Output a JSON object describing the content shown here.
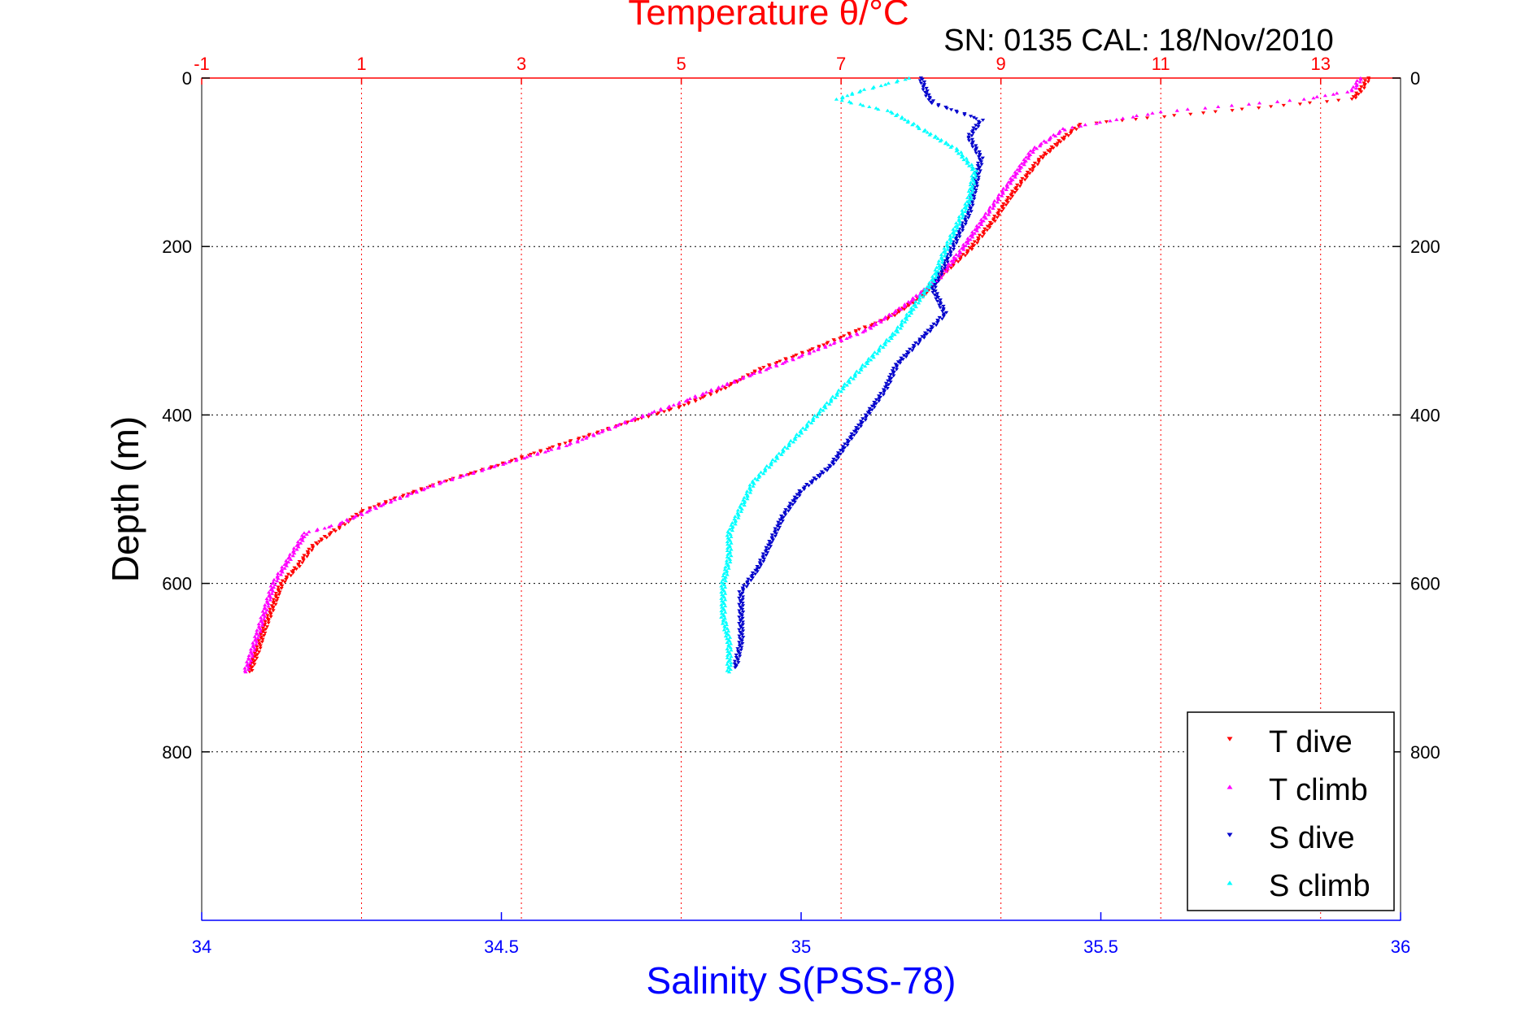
{
  "chart_data": {
    "type": "scatter",
    "title": "Temperature θ/°C",
    "subtitle": "SN: 0135  CAL: 18/Nov/2010",
    "xlabel_bottom": "Salinity S(PSS-78)",
    "xlabel_top": "Temperature θ/°C",
    "ylabel": "Depth (m)",
    "salinity_range": [
      34,
      36
    ],
    "temperature_range": [
      -1,
      14
    ],
    "depth_range": [
      0,
      1000
    ],
    "depth_inverted": true,
    "salinity_ticks": [
      "34",
      "34.5",
      "35",
      "35.5",
      "36"
    ],
    "temperature_ticks": [
      "-1",
      "1",
      "3",
      "5",
      "7",
      "9",
      "11",
      "13"
    ],
    "depth_ticks_left": [
      "0",
      "200",
      "400",
      "600",
      "800"
    ],
    "depth_ticks_right": [
      "0",
      "200",
      "400",
      "600",
      "800"
    ],
    "grid": true,
    "legend_position": "bottom-right",
    "colors": {
      "temperature_axis": "#ff0000",
      "salinity_axis": "#0000ff",
      "t_dive": "#ff0000",
      "t_climb": "#ff00ff",
      "s_dive": "#0000cc",
      "s_climb": "#00ffff"
    },
    "series": [
      {
        "name": "T dive",
        "axis": "temperature",
        "marker": "triangle-down",
        "points": [
          [
            13.6,
            0
          ],
          [
            13.5,
            15
          ],
          [
            13.4,
            25
          ],
          [
            10,
            55
          ],
          [
            9.8,
            70
          ],
          [
            9.5,
            95
          ],
          [
            9.2,
            130
          ],
          [
            8.9,
            170
          ],
          [
            8.6,
            205
          ],
          [
            8.3,
            230
          ],
          [
            8.0,
            260
          ],
          [
            7.6,
            285
          ],
          [
            7.2,
            300
          ],
          [
            6.7,
            320
          ],
          [
            6.0,
            345
          ],
          [
            5.5,
            370
          ],
          [
            5.0,
            390
          ],
          [
            4.3,
            410
          ],
          [
            3.5,
            435
          ],
          [
            2.7,
            460
          ],
          [
            2.0,
            480
          ],
          [
            1.4,
            500
          ],
          [
            1.0,
            515
          ],
          [
            0.7,
            535
          ],
          [
            0.4,
            555
          ],
          [
            0.2,
            580
          ],
          [
            0.0,
            600
          ],
          [
            -0.1,
            625
          ],
          [
            -0.2,
            650
          ],
          [
            -0.3,
            680
          ],
          [
            -0.4,
            705
          ]
        ]
      },
      {
        "name": "T climb",
        "axis": "temperature",
        "marker": "triangle-up",
        "points": [
          [
            13.5,
            0
          ],
          [
            13.4,
            15
          ],
          [
            12.8,
            25
          ],
          [
            11.0,
            40
          ],
          [
            9.8,
            60
          ],
          [
            9.4,
            85
          ],
          [
            9.1,
            125
          ],
          [
            8.8,
            165
          ],
          [
            8.5,
            205
          ],
          [
            8.2,
            240
          ],
          [
            7.8,
            270
          ],
          [
            7.3,
            300
          ],
          [
            6.5,
            330
          ],
          [
            5.8,
            355
          ],
          [
            5.0,
            385
          ],
          [
            4.4,
            405
          ],
          [
            3.6,
            435
          ],
          [
            2.7,
            460
          ],
          [
            2.0,
            480
          ],
          [
            1.3,
            505
          ],
          [
            0.7,
            530
          ],
          [
            0.3,
            540
          ],
          [
            0.1,
            570
          ],
          [
            -0.1,
            600
          ],
          [
            -0.2,
            630
          ],
          [
            -0.3,
            660
          ],
          [
            -0.4,
            690
          ],
          [
            -0.45,
            705
          ]
        ]
      },
      {
        "name": "S dive",
        "axis": "salinity",
        "marker": "triangle-down",
        "points": [
          [
            35.2,
            0
          ],
          [
            35.21,
            20
          ],
          [
            35.22,
            30
          ],
          [
            35.3,
            50
          ],
          [
            35.28,
            70
          ],
          [
            35.3,
            95
          ],
          [
            35.29,
            130
          ],
          [
            35.28,
            160
          ],
          [
            35.26,
            190
          ],
          [
            35.24,
            220
          ],
          [
            35.22,
            250
          ],
          [
            35.24,
            280
          ],
          [
            35.2,
            310
          ],
          [
            35.16,
            340
          ],
          [
            35.14,
            370
          ],
          [
            35.11,
            400
          ],
          [
            35.08,
            430
          ],
          [
            35.05,
            460
          ],
          [
            35.0,
            490
          ],
          [
            34.97,
            520
          ],
          [
            34.95,
            550
          ],
          [
            34.93,
            580
          ],
          [
            34.9,
            610
          ],
          [
            34.9,
            640
          ],
          [
            34.9,
            670
          ],
          [
            34.89,
            700
          ]
        ]
      },
      {
        "name": "S climb",
        "axis": "salinity",
        "marker": "triangle-up",
        "points": [
          [
            35.18,
            0
          ],
          [
            35.1,
            15
          ],
          [
            35.06,
            25
          ],
          [
            35.15,
            40
          ],
          [
            35.2,
            60
          ],
          [
            35.26,
            85
          ],
          [
            35.29,
            110
          ],
          [
            35.28,
            145
          ],
          [
            35.26,
            175
          ],
          [
            35.24,
            205
          ],
          [
            35.22,
            240
          ],
          [
            35.19,
            270
          ],
          [
            35.16,
            300
          ],
          [
            35.12,
            330
          ],
          [
            35.08,
            360
          ],
          [
            35.04,
            390
          ],
          [
            35.0,
            420
          ],
          [
            34.96,
            450
          ],
          [
            34.92,
            480
          ],
          [
            34.9,
            510
          ],
          [
            34.88,
            540
          ],
          [
            34.88,
            570
          ],
          [
            34.87,
            600
          ],
          [
            34.87,
            640
          ],
          [
            34.88,
            670
          ],
          [
            34.88,
            705
          ]
        ]
      }
    ]
  }
}
